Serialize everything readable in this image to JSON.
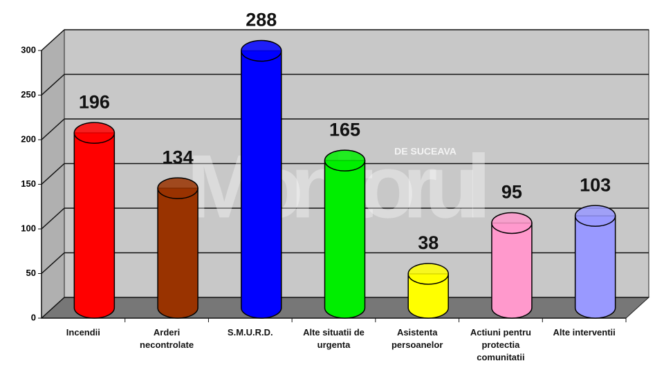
{
  "chart_data": {
    "type": "bar3d",
    "categories": [
      "Incendii",
      "Arderi necontrolate",
      "S.M.U.R.D.",
      "Alte situatii de urgenta",
      "Asistenta persoanelor",
      "Actiuni pentru protectia comunitatii",
      "Alte interventii"
    ],
    "values": [
      196,
      134,
      288,
      165,
      38,
      95,
      103
    ],
    "colors": [
      "#ff0000",
      "#993300",
      "#0000ff",
      "#00ee00",
      "#ffff00",
      "#ff99cc",
      "#9999ff"
    ],
    "ylim": [
      0,
      300
    ],
    "yticks": [
      0,
      50,
      100,
      150,
      200,
      250,
      300
    ],
    "grid": true,
    "watermark": {
      "title": "Monitorul",
      "subtitle": "DE SUCEAVA"
    }
  }
}
